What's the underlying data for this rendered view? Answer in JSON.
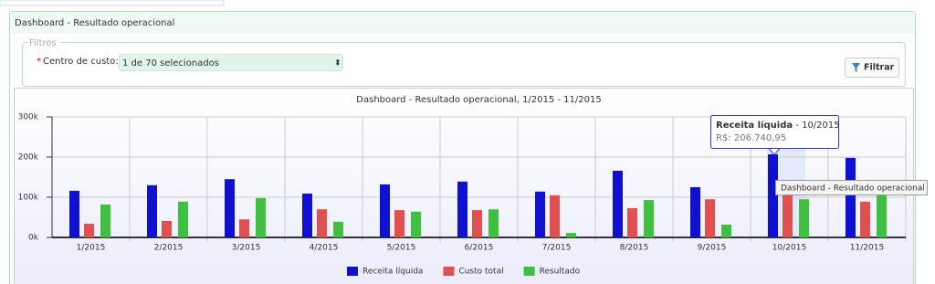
{
  "panel": {
    "title": "Dashboard - Resultado operacional",
    "filters": {
      "legend": "Filtros",
      "required_mark": "*",
      "field_label": "Centro de custo:",
      "select_value": "1 de 70 selecionados",
      "button": "Filtrar"
    }
  },
  "chart_data": {
    "type": "bar",
    "title": "Dashboard - Resultado operacional, 1/2015 - 11/2015",
    "categories": [
      "1/2015",
      "2/2015",
      "3/2015",
      "4/2015",
      "5/2015",
      "6/2015",
      "7/2015",
      "8/2015",
      "9/2015",
      "10/2015",
      "11/2015"
    ],
    "series": [
      {
        "name": "Receita líquida",
        "color": "#1010d0",
        "values": [
          116000,
          130000,
          145000,
          109000,
          132000,
          139000,
          114000,
          166000,
          125000,
          206740.95,
          198000
        ]
      },
      {
        "name": "Custo total",
        "color": "#e05050",
        "values": [
          34000,
          41000,
          45000,
          70000,
          68000,
          68000,
          105000,
          73000,
          95000,
          107000,
          89000
        ]
      },
      {
        "name": "Resultado",
        "color": "#40c040",
        "values": [
          82000,
          89000,
          98000,
          39000,
          64000,
          70000,
          11000,
          93000,
          32000,
          95000,
          114000
        ]
      }
    ],
    "ylim": [
      0,
      300000
    ],
    "yticks": [
      {
        "value": 0,
        "label": "0k"
      },
      {
        "value": 100000,
        "label": "100k"
      },
      {
        "value": 200000,
        "label": "200k"
      },
      {
        "value": 300000,
        "label": "300k"
      }
    ],
    "grid": true,
    "tooltip": {
      "title": "Receita líquida",
      "subtitle": " - 10/2015",
      "value": "R$: 206.740,95"
    },
    "hover_title": "Dashboard - Resultado operacional"
  }
}
